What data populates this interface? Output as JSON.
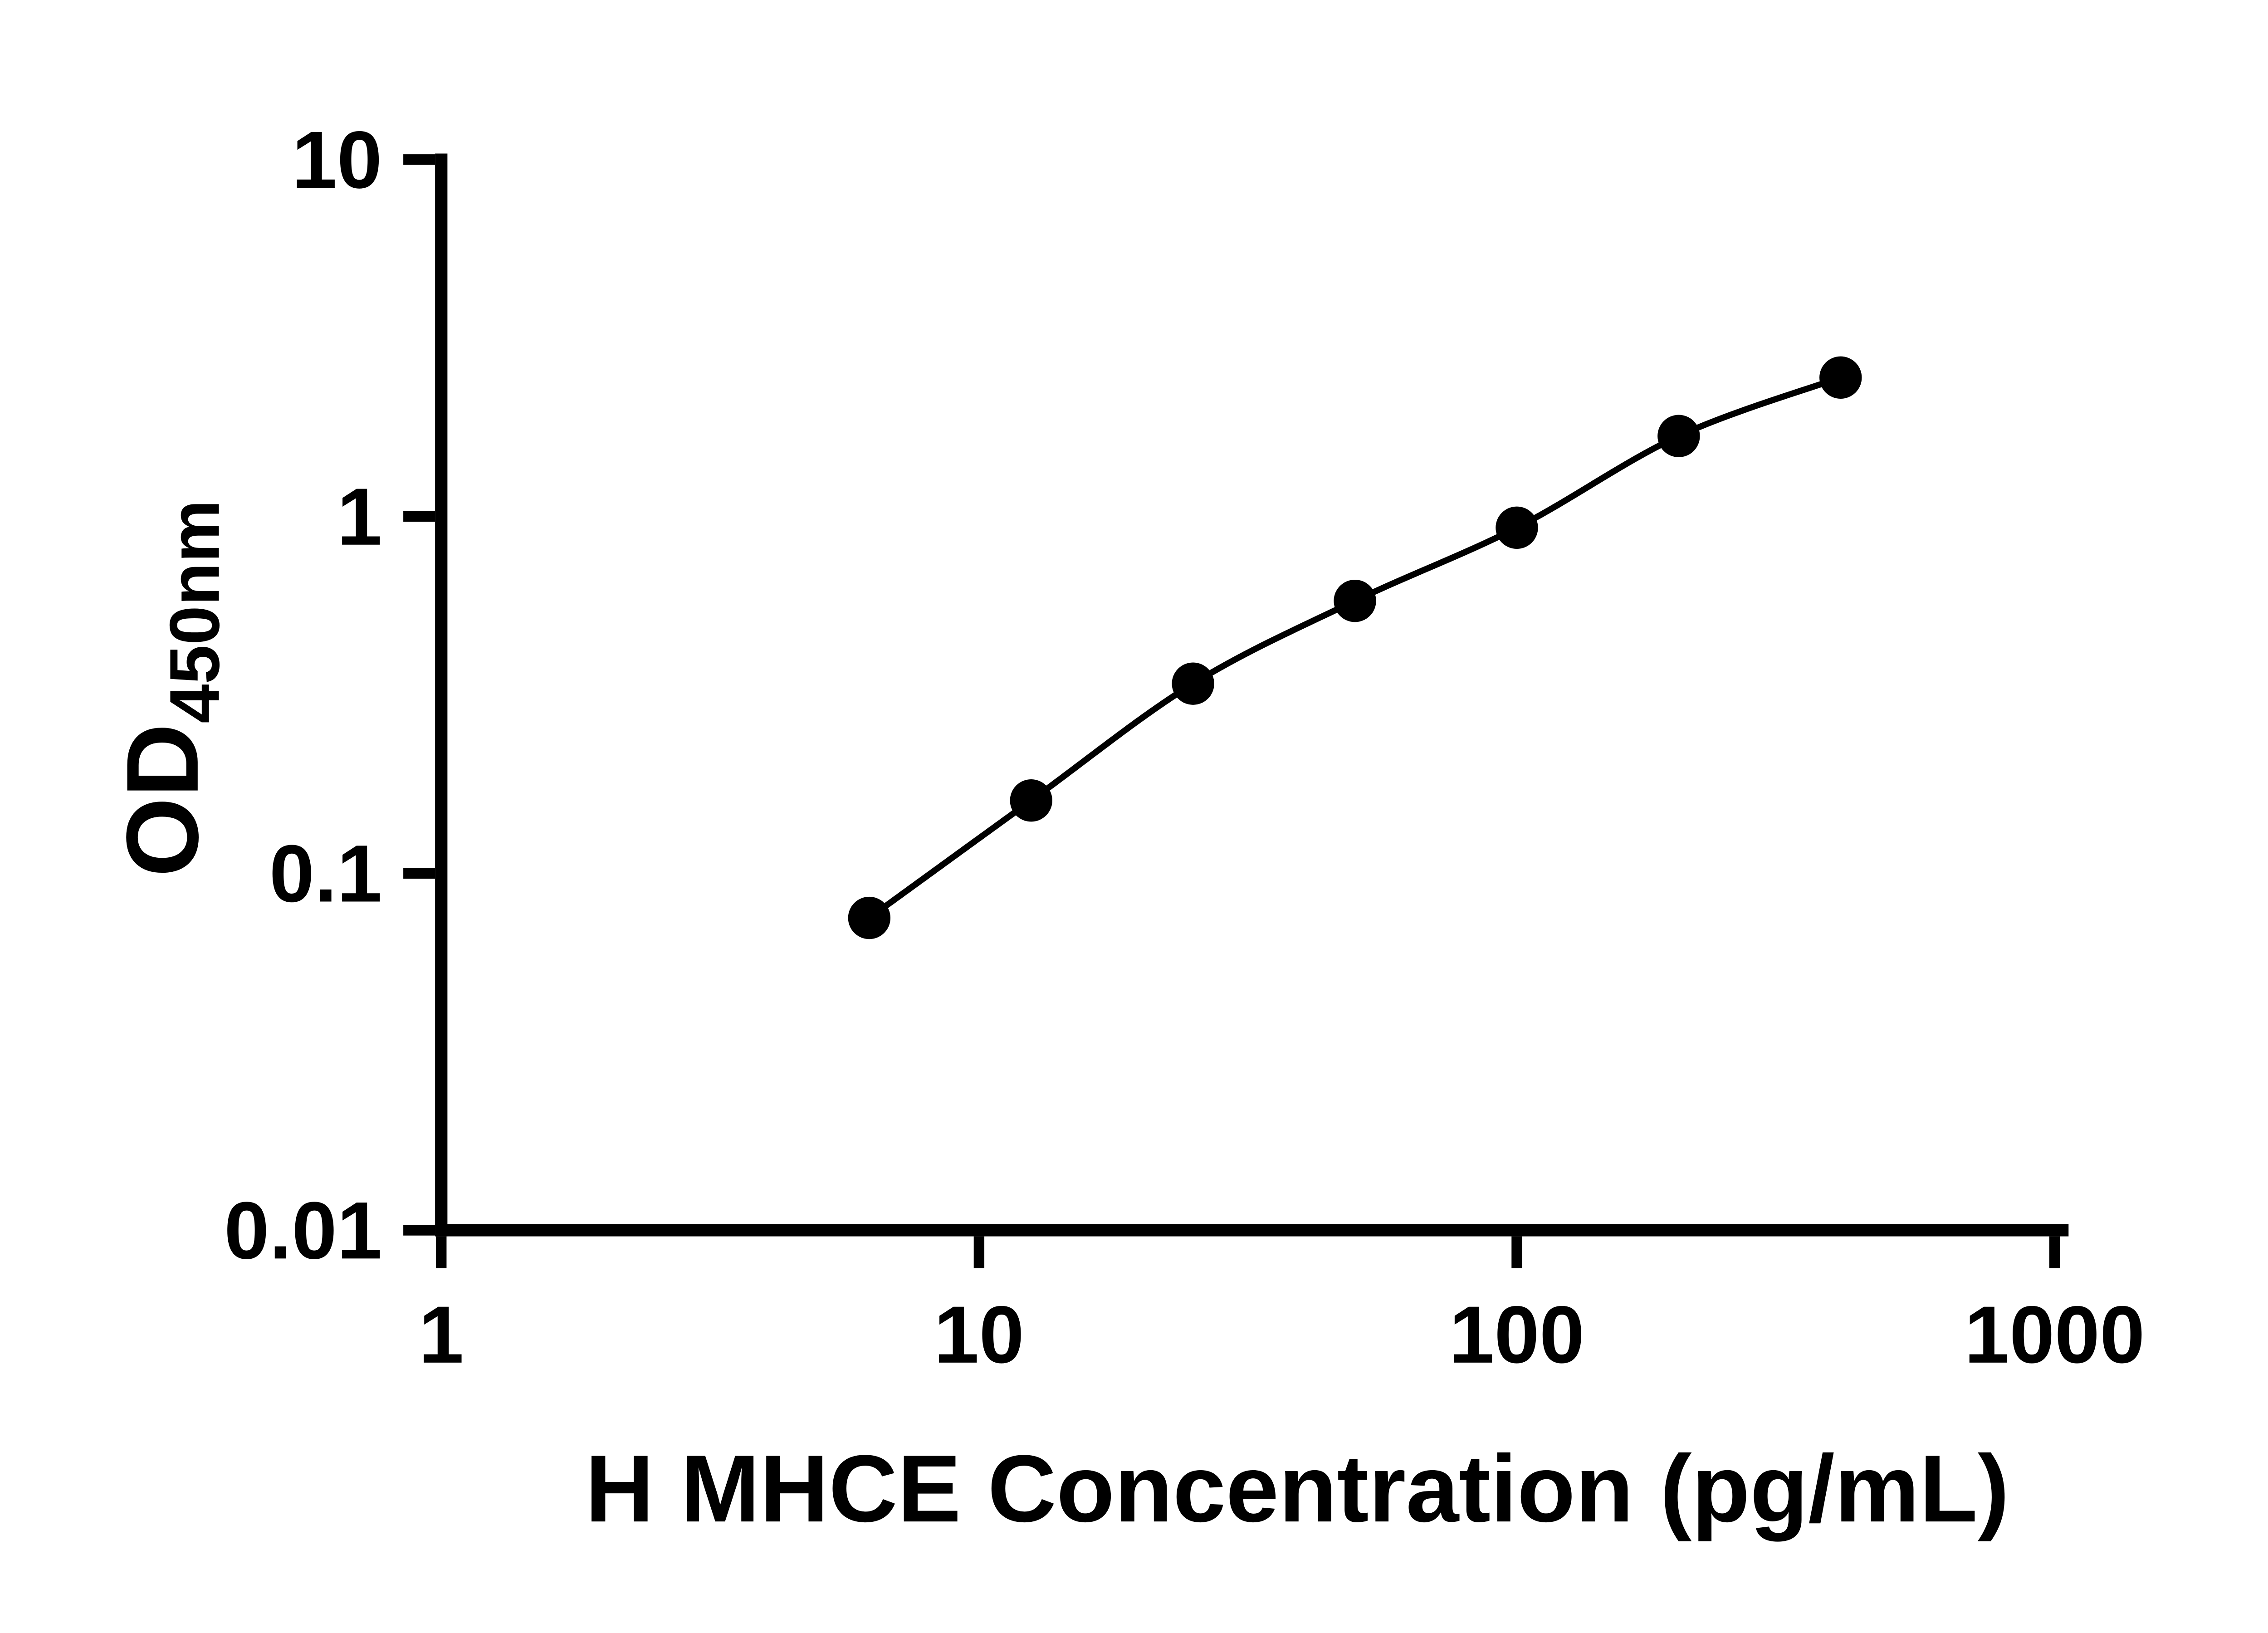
{
  "chart_data": {
    "type": "line",
    "xlabel": "H MHCE Concentration (pg/mL)",
    "ylabel": "OD450nm",
    "ylabel_main": "OD",
    "ylabel_sub": "450nm",
    "xscale": "log",
    "yscale": "log",
    "xlim": [
      1,
      1000
    ],
    "ylim": [
      0.01,
      10
    ],
    "x_ticks": [
      1,
      10,
      100,
      1000
    ],
    "x_tick_labels": [
      "1",
      "10",
      "100",
      "1000"
    ],
    "y_ticks": [
      0.01,
      0.1,
      1,
      10
    ],
    "y_tick_labels": [
      "0.01",
      "0.1",
      "1",
      "10"
    ],
    "grid": false,
    "legend": false,
    "colors": {
      "curve": "#000000",
      "marker": "#000000",
      "axis": "#000000",
      "background": "#ffffff"
    },
    "series": [
      {
        "x": [
          6.25,
          12.5,
          25,
          50,
          100,
          200,
          400
        ],
        "y": [
          0.075,
          0.16,
          0.34,
          0.58,
          0.93,
          1.68,
          2.45
        ],
        "marker": "circle"
      }
    ]
  }
}
